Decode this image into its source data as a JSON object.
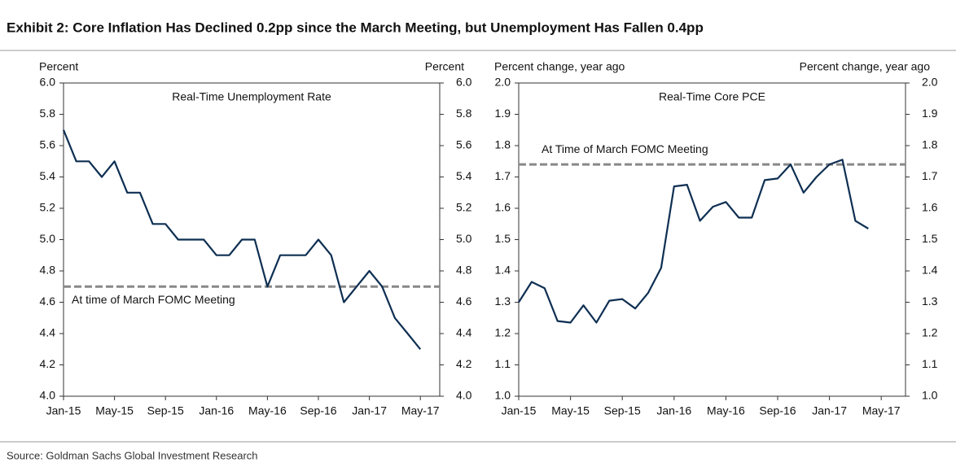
{
  "title": "Exhibit 2: Core Inflation Has Declined 0.2pp since the March Meeting, but Unemployment Has Fallen 0.4pp",
  "source": "Source: Goldman Sachs Global Investment Research",
  "chart_data": [
    {
      "type": "line",
      "title": "Real-Time Unemployment Rate",
      "ylabel": "Percent",
      "y2label": "Percent",
      "categories": [
        "Jan-15",
        null,
        null,
        null,
        "May-15",
        null,
        null,
        null,
        "Sep-15",
        null,
        null,
        null,
        "Jan-16",
        null,
        null,
        null,
        "May-16",
        null,
        null,
        null,
        "Sep-16",
        null,
        null,
        null,
        "Jan-17",
        null,
        null,
        null,
        "May-17"
      ],
      "values": [
        5.7,
        5.5,
        5.5,
        5.4,
        5.5,
        5.3,
        5.3,
        5.1,
        5.1,
        5.0,
        5.0,
        5.0,
        4.9,
        4.9,
        5.0,
        5.0,
        4.7,
        4.9,
        4.9,
        4.9,
        5.0,
        4.9,
        4.6,
        4.7,
        4.8,
        4.7,
        4.5,
        4.4,
        4.3
      ],
      "color": "#0e2f52",
      "reference_line": {
        "value": 4.7,
        "label": "At time of March FOMC Meeting",
        "color": "#888888"
      },
      "ylim": [
        4.0,
        6.0
      ],
      "yticks": [
        {
          "value": 4.0,
          "label": "4.0"
        },
        4.2,
        4.4,
        4.6,
        4.8,
        {
          "value": 5.0,
          "label": "5.0"
        },
        5.2,
        5.4,
        5.6,
        5.8,
        {
          "value": 6.0,
          "label": "6.0"
        }
      ],
      "y2lim": [
        4.0,
        6.0
      ],
      "y2ticks": [
        {
          "value": 4.0,
          "label": "4.0"
        },
        4.2,
        4.4,
        4.6,
        4.8,
        {
          "value": 5.0,
          "label": "5.0"
        },
        5.2,
        5.4,
        5.6,
        5.8,
        {
          "value": 6.0,
          "label": "6.0"
        }
      ]
    },
    {
      "type": "line",
      "title": "Real-Time Core PCE",
      "ylabel": "Percent change, year ago",
      "y2label": "Percent change, year ago",
      "categories": [
        "Jan-15",
        null,
        null,
        null,
        "May-15",
        null,
        null,
        null,
        "Sep-15",
        null,
        null,
        null,
        "Jan-16",
        null,
        null,
        null,
        "May-16",
        null,
        null,
        null,
        "Sep-16",
        null,
        null,
        null,
        "Jan-17",
        null,
        null,
        null,
        "May-17"
      ],
      "values": [
        1.3,
        1.365,
        1.345,
        1.24,
        1.235,
        1.29,
        1.235,
        1.305,
        1.31,
        1.28,
        1.33,
        1.41,
        1.67,
        1.675,
        1.56,
        1.605,
        1.62,
        1.57,
        1.57,
        1.69,
        1.695,
        1.74,
        1.65,
        1.7,
        1.74,
        1.755,
        1.56,
        1.535,
        null
      ],
      "color": "#0e2f52",
      "reference_line": {
        "value": 1.74,
        "label": "At Time of March FOMC Meeting",
        "color": "#888888"
      },
      "ylim": [
        1.0,
        2.0
      ],
      "yticks": [
        {
          "value": 1.0,
          "label": "1.0"
        },
        1.1,
        1.2,
        1.3,
        1.4,
        1.5,
        1.6,
        1.7,
        1.8,
        1.9,
        {
          "value": 2.0,
          "label": "2.0"
        }
      ],
      "y2lim": [
        1.0,
        2.0
      ],
      "y2ticks": [
        {
          "value": 1.0,
          "label": "1.0"
        },
        1.1,
        1.2,
        1.3,
        1.4,
        1.5,
        1.6,
        1.7,
        1.8,
        1.9,
        {
          "value": 2.0,
          "label": "2.0"
        }
      ]
    }
  ]
}
